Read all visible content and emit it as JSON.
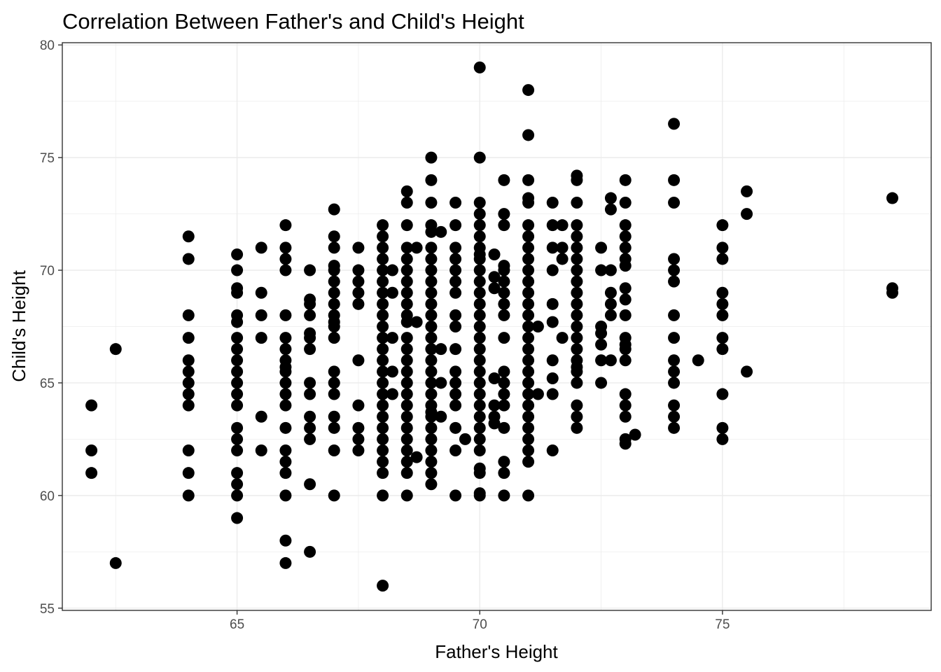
{
  "chart_data": {
    "type": "scatter",
    "title": "Correlation Between Father's and Child's Height",
    "xlabel": "Father's Height",
    "ylabel": "Child's Height",
    "xlim": [
      61.4,
      79.3
    ],
    "ylim": [
      54.9,
      80.1
    ],
    "x_ticks": [
      "65",
      "70",
      "75"
    ],
    "y_ticks": [
      "55",
      "60",
      "65",
      "70",
      "75",
      "80"
    ],
    "grid": true,
    "legend": "none",
    "colors": {
      "points": "#000000",
      "grid": "#ebebeb",
      "panel_border": "#333333",
      "tick_text": "#4d4d4d"
    },
    "points": [
      [
        62,
        64
      ],
      [
        62,
        62
      ],
      [
        62,
        61
      ],
      [
        62.5,
        66.5
      ],
      [
        62.5,
        57
      ],
      [
        64,
        71.5
      ],
      [
        64,
        70.5
      ],
      [
        64,
        68
      ],
      [
        64,
        67
      ],
      [
        64,
        66
      ],
      [
        64,
        65.5
      ],
      [
        64,
        65
      ],
      [
        64,
        64.5
      ],
      [
        64,
        64
      ],
      [
        64,
        62
      ],
      [
        64,
        61
      ],
      [
        64,
        60
      ],
      [
        65,
        70.7
      ],
      [
        65,
        70
      ],
      [
        65,
        69.2
      ],
      [
        65,
        69
      ],
      [
        65,
        68
      ],
      [
        65,
        67.7
      ],
      [
        65,
        67
      ],
      [
        65,
        66.5
      ],
      [
        65,
        66
      ],
      [
        65,
        65.5
      ],
      [
        65,
        65
      ],
      [
        65,
        64.5
      ],
      [
        65,
        64
      ],
      [
        65,
        63
      ],
      [
        65,
        62.5
      ],
      [
        65,
        62
      ],
      [
        65,
        61
      ],
      [
        65,
        60.5
      ],
      [
        65,
        60
      ],
      [
        65,
        59
      ],
      [
        65.5,
        71
      ],
      [
        65.5,
        69
      ],
      [
        65.5,
        68
      ],
      [
        65.5,
        67
      ],
      [
        65.5,
        63.5
      ],
      [
        65.5,
        62
      ],
      [
        66,
        72
      ],
      [
        66,
        71
      ],
      [
        66,
        70.5
      ],
      [
        66,
        70
      ],
      [
        66,
        68
      ],
      [
        66,
        67
      ],
      [
        66,
        66.5
      ],
      [
        66,
        66
      ],
      [
        66,
        65.7
      ],
      [
        66,
        65.5
      ],
      [
        66,
        65
      ],
      [
        66,
        64.5
      ],
      [
        66,
        64
      ],
      [
        66,
        63
      ],
      [
        66,
        62
      ],
      [
        66,
        61.5
      ],
      [
        66,
        61
      ],
      [
        66,
        60
      ],
      [
        66,
        58
      ],
      [
        66,
        57
      ],
      [
        66.5,
        70
      ],
      [
        66.5,
        68.7
      ],
      [
        66.5,
        68.5
      ],
      [
        66.5,
        68
      ],
      [
        66.5,
        67.2
      ],
      [
        66.5,
        67
      ],
      [
        66.5,
        66.5
      ],
      [
        66.5,
        65
      ],
      [
        66.5,
        64.5
      ],
      [
        66.5,
        63.5
      ],
      [
        66.5,
        63
      ],
      [
        66.5,
        62.5
      ],
      [
        66.5,
        60.5
      ],
      [
        66.5,
        57.5
      ],
      [
        67,
        72.7
      ],
      [
        67,
        71.5
      ],
      [
        67,
        71
      ],
      [
        67,
        70.2
      ],
      [
        67,
        70
      ],
      [
        67,
        69.5
      ],
      [
        67,
        69
      ],
      [
        67,
        68.5
      ],
      [
        67,
        68
      ],
      [
        67,
        67.7
      ],
      [
        67,
        67.5
      ],
      [
        67,
        67
      ],
      [
        67,
        65.5
      ],
      [
        67,
        65
      ],
      [
        67,
        64.5
      ],
      [
        67,
        63.5
      ],
      [
        67,
        63
      ],
      [
        67,
        62
      ],
      [
        67,
        60
      ],
      [
        67.5,
        71
      ],
      [
        67.5,
        70
      ],
      [
        67.5,
        69.5
      ],
      [
        67.5,
        69
      ],
      [
        67.5,
        68.5
      ],
      [
        67.5,
        66
      ],
      [
        67.5,
        64
      ],
      [
        67.5,
        63
      ],
      [
        67.5,
        62.5
      ],
      [
        67.5,
        62
      ],
      [
        68,
        72
      ],
      [
        68,
        71.5
      ],
      [
        68,
        71
      ],
      [
        68,
        70.5
      ],
      [
        68,
        70
      ],
      [
        68,
        69.5
      ],
      [
        68,
        69
      ],
      [
        68,
        68.5
      ],
      [
        68,
        68
      ],
      [
        68,
        67.5
      ],
      [
        68,
        67
      ],
      [
        68,
        66.5
      ],
      [
        68,
        66
      ],
      [
        68,
        65.5
      ],
      [
        68,
        65
      ],
      [
        68,
        64.5
      ],
      [
        68,
        64
      ],
      [
        68,
        63.5
      ],
      [
        68,
        63
      ],
      [
        68,
        62.5
      ],
      [
        68,
        62
      ],
      [
        68,
        61.5
      ],
      [
        68,
        61
      ],
      [
        68,
        60
      ],
      [
        68,
        56
      ],
      [
        68.2,
        70
      ],
      [
        68.2,
        69
      ],
      [
        68.2,
        67
      ],
      [
        68.2,
        65.5
      ],
      [
        68.2,
        64.5
      ],
      [
        68.5,
        73.5
      ],
      [
        68.5,
        73
      ],
      [
        68.5,
        72
      ],
      [
        68.5,
        71
      ],
      [
        68.5,
        70.5
      ],
      [
        68.5,
        70
      ],
      [
        68.5,
        69.5
      ],
      [
        68.5,
        69
      ],
      [
        68.5,
        68.5
      ],
      [
        68.5,
        68
      ],
      [
        68.5,
        67.7
      ],
      [
        68.5,
        67
      ],
      [
        68.5,
        66.5
      ],
      [
        68.5,
        66
      ],
      [
        68.5,
        65.5
      ],
      [
        68.5,
        65
      ],
      [
        68.5,
        64.5
      ],
      [
        68.5,
        64
      ],
      [
        68.5,
        63.5
      ],
      [
        68.5,
        63
      ],
      [
        68.5,
        62.5
      ],
      [
        68.5,
        62
      ],
      [
        68.5,
        61.5
      ],
      [
        68.5,
        61
      ],
      [
        68.5,
        60
      ],
      [
        68.7,
        71
      ],
      [
        68.7,
        67.7
      ],
      [
        68.7,
        61.7
      ],
      [
        69,
        75
      ],
      [
        69,
        74
      ],
      [
        69,
        73
      ],
      [
        69,
        72
      ],
      [
        69,
        71.7
      ],
      [
        69,
        71
      ],
      [
        69,
        70.5
      ],
      [
        69,
        70
      ],
      [
        69,
        69.5
      ],
      [
        69,
        69
      ],
      [
        69,
        68.5
      ],
      [
        69,
        68
      ],
      [
        69,
        67.5
      ],
      [
        69,
        67
      ],
      [
        69,
        66.5
      ],
      [
        69,
        66
      ],
      [
        69,
        65.5
      ],
      [
        69,
        65
      ],
      [
        69,
        64.5
      ],
      [
        69,
        64
      ],
      [
        69,
        63.7
      ],
      [
        69,
        63.5
      ],
      [
        69,
        63
      ],
      [
        69,
        62.5
      ],
      [
        69,
        62
      ],
      [
        69,
        61.5
      ],
      [
        69,
        61
      ],
      [
        69,
        60.5
      ],
      [
        69.2,
        71.7
      ],
      [
        69.2,
        66.5
      ],
      [
        69.2,
        65
      ],
      [
        69.2,
        63.5
      ],
      [
        69.5,
        73
      ],
      [
        69.5,
        72
      ],
      [
        69.5,
        71
      ],
      [
        69.5,
        70.5
      ],
      [
        69.5,
        70
      ],
      [
        69.5,
        69.5
      ],
      [
        69.5,
        69
      ],
      [
        69.5,
        68
      ],
      [
        69.5,
        67.5
      ],
      [
        69.5,
        66.5
      ],
      [
        69.5,
        65.5
      ],
      [
        69.5,
        65
      ],
      [
        69.5,
        64.5
      ],
      [
        69.5,
        64
      ],
      [
        69.5,
        63
      ],
      [
        69.5,
        62
      ],
      [
        69.5,
        60
      ],
      [
        69.7,
        62.5
      ],
      [
        70,
        79
      ],
      [
        70,
        75
      ],
      [
        70,
        73
      ],
      [
        70,
        72.5
      ],
      [
        70,
        72
      ],
      [
        70,
        71.5
      ],
      [
        70,
        71
      ],
      [
        70,
        70.7
      ],
      [
        70,
        70.5
      ],
      [
        70,
        70
      ],
      [
        70,
        69.5
      ],
      [
        70,
        69
      ],
      [
        70,
        68.5
      ],
      [
        70,
        68
      ],
      [
        70,
        67.5
      ],
      [
        70,
        67
      ],
      [
        70,
        66.5
      ],
      [
        70,
        66
      ],
      [
        70,
        65.5
      ],
      [
        70,
        65
      ],
      [
        70,
        64.5
      ],
      [
        70,
        64
      ],
      [
        70,
        63.5
      ],
      [
        70,
        63
      ],
      [
        70,
        62.5
      ],
      [
        70,
        62
      ],
      [
        70,
        61.2
      ],
      [
        70,
        61
      ],
      [
        70,
        60.1
      ],
      [
        70,
        60
      ],
      [
        70.3,
        70.7
      ],
      [
        70.3,
        69.7
      ],
      [
        70.3,
        69.2
      ],
      [
        70.3,
        65.2
      ],
      [
        70.3,
        64
      ],
      [
        70.3,
        63.5
      ],
      [
        70.3,
        63.2
      ],
      [
        70.5,
        74
      ],
      [
        70.5,
        72.5
      ],
      [
        70.5,
        72
      ],
      [
        70.5,
        70.2
      ],
      [
        70.5,
        70
      ],
      [
        70.5,
        69.5
      ],
      [
        70.5,
        69
      ],
      [
        70.5,
        68.5
      ],
      [
        70.5,
        68
      ],
      [
        70.5,
        67
      ],
      [
        70.5,
        65.5
      ],
      [
        70.5,
        65
      ],
      [
        70.5,
        64.5
      ],
      [
        70.5,
        64
      ],
      [
        70.5,
        63
      ],
      [
        70.5,
        61.5
      ],
      [
        70.5,
        61
      ],
      [
        70.5,
        60
      ],
      [
        71,
        78
      ],
      [
        71,
        76
      ],
      [
        71,
        74
      ],
      [
        71,
        73.2
      ],
      [
        71,
        73
      ],
      [
        71,
        72
      ],
      [
        71,
        71.5
      ],
      [
        71,
        71
      ],
      [
        71,
        70.5
      ],
      [
        71,
        70
      ],
      [
        71,
        69.5
      ],
      [
        71,
        69
      ],
      [
        71,
        68.5
      ],
      [
        71,
        68
      ],
      [
        71,
        67.5
      ],
      [
        71,
        67
      ],
      [
        71,
        66.5
      ],
      [
        71,
        66
      ],
      [
        71,
        65.5
      ],
      [
        71,
        65
      ],
      [
        71,
        64.5
      ],
      [
        71,
        64
      ],
      [
        71,
        63.5
      ],
      [
        71,
        63
      ],
      [
        71,
        62.5
      ],
      [
        71,
        62
      ],
      [
        71,
        61.5
      ],
      [
        71,
        60
      ],
      [
        71.2,
        67.5
      ],
      [
        71.2,
        64.5
      ],
      [
        71.5,
        73
      ],
      [
        71.5,
        72
      ],
      [
        71.5,
        71
      ],
      [
        71.5,
        70
      ],
      [
        71.5,
        68.5
      ],
      [
        71.5,
        67.7
      ],
      [
        71.5,
        66
      ],
      [
        71.5,
        65.2
      ],
      [
        71.5,
        64.5
      ],
      [
        71.5,
        62
      ],
      [
        71.7,
        72
      ],
      [
        71.7,
        71
      ],
      [
        71.7,
        70.5
      ],
      [
        71.7,
        67
      ],
      [
        72,
        74.2
      ],
      [
        72,
        74
      ],
      [
        72,
        73
      ],
      [
        72,
        72
      ],
      [
        72,
        71.5
      ],
      [
        72,
        71
      ],
      [
        72,
        70.5
      ],
      [
        72,
        70
      ],
      [
        72,
        69.5
      ],
      [
        72,
        69
      ],
      [
        72,
        68.5
      ],
      [
        72,
        68
      ],
      [
        72,
        67.5
      ],
      [
        72,
        67
      ],
      [
        72,
        66.5
      ],
      [
        72,
        66
      ],
      [
        72,
        65.7
      ],
      [
        72,
        65.5
      ],
      [
        72,
        65
      ],
      [
        72,
        64
      ],
      [
        72,
        63.5
      ],
      [
        72,
        63
      ],
      [
        72.5,
        71
      ],
      [
        72.5,
        70
      ],
      [
        72.5,
        67.5
      ],
      [
        72.5,
        67.2
      ],
      [
        72.5,
        66.7
      ],
      [
        72.5,
        66
      ],
      [
        72.5,
        65
      ],
      [
        72.7,
        73.2
      ],
      [
        72.7,
        72.7
      ],
      [
        72.7,
        70
      ],
      [
        72.7,
        69
      ],
      [
        72.7,
        68.5
      ],
      [
        72.7,
        68
      ],
      [
        72.7,
        66
      ],
      [
        73,
        74
      ],
      [
        73,
        73
      ],
      [
        73,
        72
      ],
      [
        73,
        71.5
      ],
      [
        73,
        71
      ],
      [
        73,
        70.5
      ],
      [
        73,
        70.2
      ],
      [
        73,
        69.2
      ],
      [
        73,
        68.7
      ],
      [
        73,
        68
      ],
      [
        73,
        67
      ],
      [
        73,
        66.7
      ],
      [
        73,
        66.5
      ],
      [
        73,
        66
      ],
      [
        73,
        64.5
      ],
      [
        73,
        64
      ],
      [
        73,
        63.5
      ],
      [
        73,
        62.5
      ],
      [
        73,
        62.3
      ],
      [
        73.2,
        62.7
      ],
      [
        74,
        76.5
      ],
      [
        74,
        74
      ],
      [
        74,
        73
      ],
      [
        74,
        70.5
      ],
      [
        74,
        70
      ],
      [
        74,
        69.5
      ],
      [
        74,
        68
      ],
      [
        74,
        67
      ],
      [
        74,
        66
      ],
      [
        74,
        65.5
      ],
      [
        74,
        65
      ],
      [
        74,
        64
      ],
      [
        74,
        63.5
      ],
      [
        74,
        63
      ],
      [
        74.5,
        66
      ],
      [
        75,
        72
      ],
      [
        75,
        71
      ],
      [
        75,
        70.5
      ],
      [
        75,
        69
      ],
      [
        75,
        68.5
      ],
      [
        75,
        68
      ],
      [
        75,
        67
      ],
      [
        75,
        66.5
      ],
      [
        75,
        64.5
      ],
      [
        75,
        63
      ],
      [
        75,
        62.5
      ],
      [
        75.5,
        73.5
      ],
      [
        75.5,
        72.5
      ],
      [
        75.5,
        65.5
      ],
      [
        78.5,
        73.2
      ],
      [
        78.5,
        69.2
      ],
      [
        78.5,
        69
      ]
    ]
  }
}
